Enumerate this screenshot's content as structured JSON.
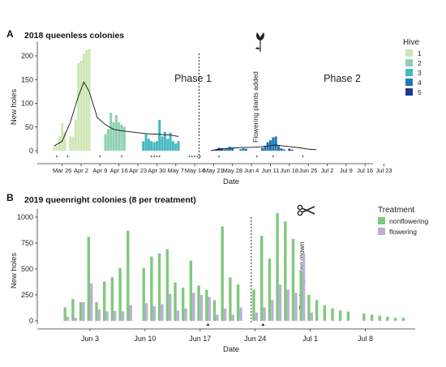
{
  "chart_data": [
    {
      "panel": "A",
      "title": "2018 queenless colonies",
      "type": "bar",
      "xlabel": "Date",
      "ylabel": "New holes",
      "ylim": [
        0,
        230
      ],
      "yticks": [
        0,
        50,
        100,
        150,
        200
      ],
      "xtick_labels": [
        "Mar 26",
        "Apr 2",
        "Apr 9",
        "Apr 16",
        "Apr 23",
        "Apr 30",
        "May 7",
        "May 14",
        "May 21",
        "May 28",
        "Jun 4",
        "Jun 11",
        "Jun 18",
        "Jun 25",
        "Jul 2",
        "Jul 9",
        "Jul 16",
        "Jul 23"
      ],
      "annotations": {
        "phase1": "Phase 1",
        "phase2": "Phase 2",
        "event": "Flowering plants added"
      },
      "legend": {
        "title": "Hive",
        "entries": [
          {
            "label": "1",
            "color": "#cfe6b4"
          },
          {
            "label": "2",
            "color": "#8fd0b2"
          },
          {
            "label": "3",
            "color": "#44b7c2"
          },
          {
            "label": "4",
            "color": "#1f79b5"
          },
          {
            "label": "5",
            "color": "#253494"
          }
        ]
      },
      "series": [
        {
          "hive": "1",
          "x": [
            2,
            3,
            4,
            5,
            6,
            8,
            9,
            10,
            11,
            12,
            13,
            14,
            15
          ],
          "values": [
            8,
            10,
            30,
            58,
            40,
            30,
            30,
            65,
            185,
            190,
            205,
            212,
            215
          ]
        },
        {
          "hive": "2",
          "x": [
            21,
            22,
            23,
            24,
            25,
            26,
            27,
            28
          ],
          "values": [
            35,
            45,
            80,
            60,
            75,
            60,
            55,
            50
          ]
        },
        {
          "hive": "3",
          "x": [
            35,
            36,
            37,
            38,
            39,
            40,
            41,
            42,
            43,
            44,
            45,
            46,
            47,
            48
          ],
          "values": [
            20,
            35,
            25,
            20,
            18,
            20,
            65,
            30,
            40,
            25,
            38,
            20,
            15,
            20
          ]
        },
        {
          "hive": "4",
          "x": [
            65,
            66,
            67,
            68,
            71,
            72,
            73,
            79,
            80,
            81,
            82,
            83,
            84,
            85,
            86,
            87
          ],
          "values": [
            3,
            5,
            8,
            6,
            3,
            5,
            4,
            6,
            10,
            18,
            22,
            28,
            30,
            10,
            5,
            3
          ]
        },
        {
          "hive": "5",
          "x": [
            62,
            63,
            64,
            89,
            90
          ],
          "values": [
            3,
            6,
            5,
            4,
            2
          ]
        }
      ],
      "smooth_phase1": {
        "x": [
          2,
          5,
          8,
          11,
          13,
          15,
          18,
          21,
          24,
          27,
          30,
          33,
          36,
          39,
          42,
          45,
          48
        ],
        "values": [
          10,
          20,
          60,
          115,
          145,
          125,
          70,
          55,
          45,
          42,
          40,
          38,
          36,
          35,
          34,
          33,
          30
        ]
      },
      "smooth_phase2": {
        "x": [
          60,
          63,
          66,
          69,
          72,
          75,
          78,
          81,
          84,
          87,
          90,
          93,
          96,
          99
        ],
        "values": [
          0,
          3,
          5,
          6,
          7,
          7,
          8,
          10,
          12,
          10,
          8,
          6,
          3,
          2
        ]
      },
      "missing_days": [
        3,
        7,
        19,
        27,
        38,
        39,
        40,
        41,
        52,
        53,
        54,
        55,
        56,
        63,
        77,
        83,
        94
      ],
      "event_day": 55
    },
    {
      "panel": "B",
      "title": "2019 queenright colonies (8 per treatment)",
      "type": "bar",
      "xlabel": "Date",
      "ylabel": "New holes",
      "ylim": [
        0,
        1080
      ],
      "yticks": [
        0,
        250,
        500,
        750,
        1000
      ],
      "xtick_labels": [
        "Jun  3",
        "Jun 10",
        "Jun 17",
        "Jun 24",
        "Jul  1",
        "Jul  8"
      ],
      "annotations": {
        "event": "Rooftop garden mown"
      },
      "legend": {
        "title": "Treatment",
        "entries": [
          {
            "label": "nonflowering",
            "color": "#7fc97f"
          },
          {
            "label": "flowering",
            "color": "#beaed4"
          }
        ]
      },
      "series": [
        {
          "name": "nonflowering",
          "x": [
            -3,
            -2,
            -1,
            0,
            1,
            2,
            3,
            4,
            5,
            7,
            8,
            9,
            10,
            11,
            12,
            13,
            14,
            15,
            16,
            17,
            18,
            19,
            21,
            22,
            23,
            24,
            25,
            26,
            27,
            28,
            29,
            30,
            31,
            32,
            33,
            35,
            36,
            37,
            38,
            39,
            40
          ],
          "values": [
            130,
            210,
            180,
            810,
            180,
            380,
            420,
            510,
            870,
            510,
            620,
            650,
            690,
            370,
            320,
            580,
            340,
            300,
            200,
            910,
            420,
            350,
            300,
            820,
            600,
            1040,
            960,
            790,
            490,
            250,
            200,
            150,
            120,
            100,
            90,
            70,
            60,
            50,
            40,
            30,
            30
          ]
        },
        {
          "name": "flowering",
          "x": [
            -3,
            -2,
            -1,
            0,
            1,
            2,
            3,
            4,
            5,
            7,
            8,
            9,
            10,
            11,
            12,
            13,
            14,
            15,
            16,
            17,
            18,
            19,
            21,
            22,
            23,
            24,
            25,
            26,
            27,
            28
          ],
          "values": [
            40,
            30,
            180,
            360,
            110,
            90,
            95,
            90,
            150,
            170,
            140,
            160,
            260,
            100,
            120,
            270,
            250,
            230,
            60,
            120,
            60,
            130,
            80,
            130,
            200,
            350,
            300,
            270,
            650,
            80
          ]
        }
      ],
      "missing_days": [
        15,
        22
      ],
      "event_day": 20.5
    }
  ],
  "labels": {
    "panelA": "A",
    "panelB": "B"
  }
}
